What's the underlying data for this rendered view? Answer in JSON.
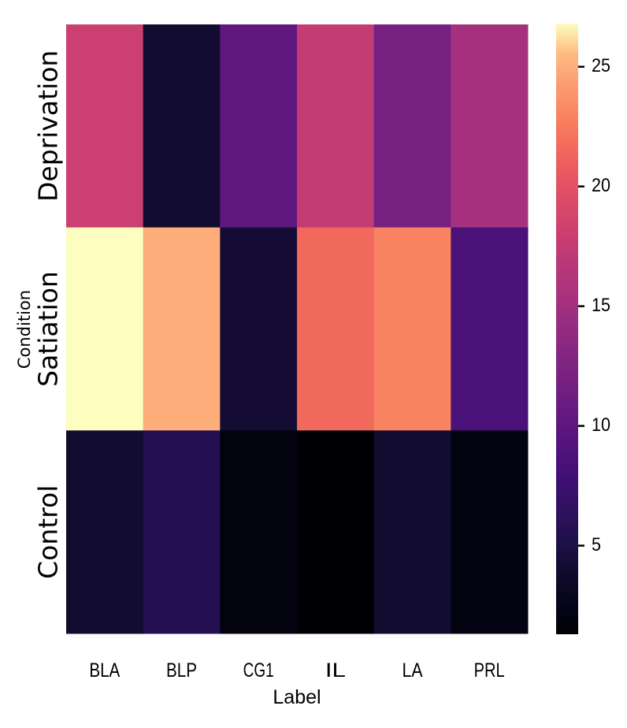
{
  "chart_data": {
    "type": "heatmap",
    "title": "",
    "xlabel": "Label",
    "ylabel": "Condition",
    "x_categories": [
      "BLA",
      "BLP",
      "CG1",
      "IL",
      "LA",
      "PRL"
    ],
    "y_categories": [
      "Deprivation",
      "Satiation",
      "Control"
    ],
    "values": [
      [
        18.0,
        4.0,
        10.2,
        17.5,
        11.8,
        15.2
      ],
      [
        26.8,
        25.0,
        4.2,
        21.5,
        23.0,
        8.5
      ],
      [
        4.0,
        5.6,
        2.0,
        1.3,
        4.0,
        2.1
      ]
    ],
    "colormap": "magma",
    "colorbar": {
      "range": [
        1.3,
        26.8
      ],
      "ticks": [
        5,
        10,
        15,
        20,
        25
      ],
      "tick_labels": [
        "5",
        "10",
        "15",
        "20",
        "25"
      ]
    },
    "grid": false,
    "legend": "colorbar-right"
  }
}
